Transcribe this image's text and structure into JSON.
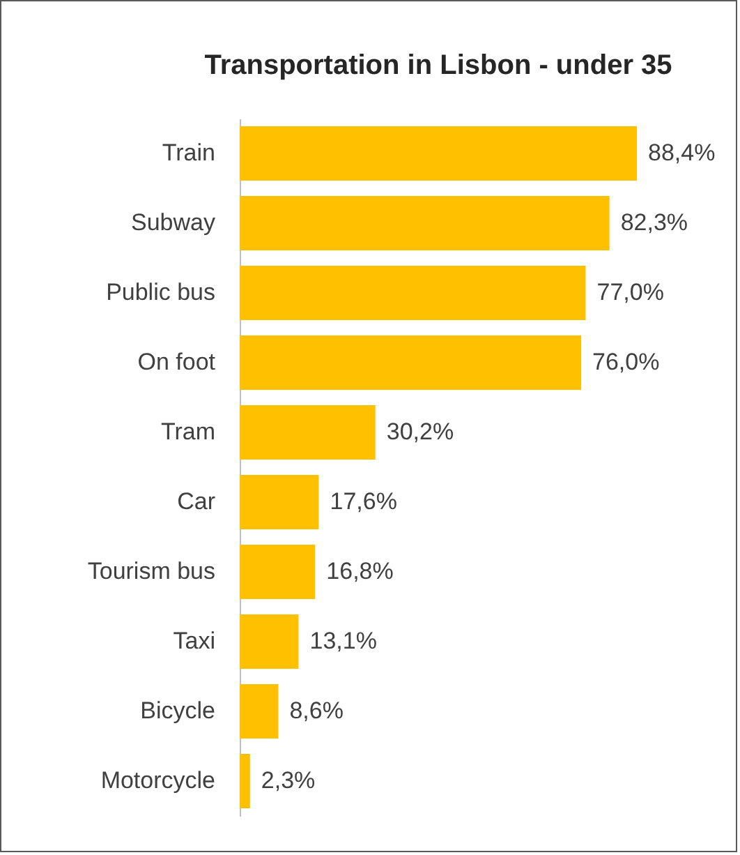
{
  "chart_data": {
    "type": "bar",
    "orientation": "horizontal",
    "title": "Transportation in Lisbon - under 35",
    "categories": [
      "Train",
      "Subway",
      "Public bus",
      "On foot",
      "Tram",
      "Car",
      "Tourism bus",
      "Taxi",
      "Bicycle",
      "Motorcycle"
    ],
    "values": [
      88.4,
      82.3,
      77.0,
      76.0,
      30.2,
      17.6,
      16.8,
      13.1,
      8.6,
      2.3
    ],
    "value_labels": [
      "88,4%",
      "82,3%",
      "77,0%",
      "76,0%",
      "30,2%",
      "17,6%",
      "16,8%",
      "13,1%",
      "8,6%",
      "2,3%"
    ],
    "color": "#ffc000"
  }
}
